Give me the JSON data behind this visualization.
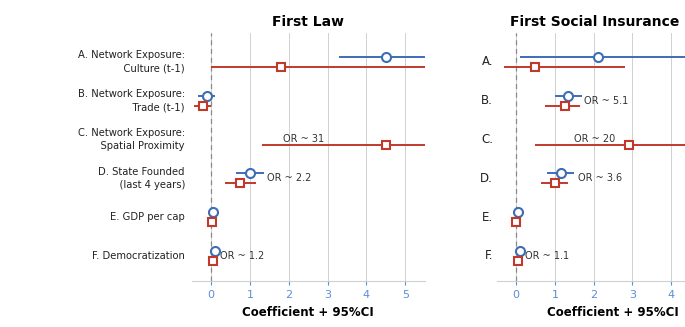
{
  "title_left": "First Law",
  "title_right": "First Social Insurance Law",
  "xlabel": "Coefficient + 95%CI",
  "xlim_left": [
    -0.5,
    5.5
  ],
  "xlim_right": [
    -0.5,
    5.5
  ],
  "xticks": [
    0,
    1,
    2,
    3,
    4,
    5
  ],
  "row_labels_left": [
    "A. Network Exposure:\n    Culture (t-1)",
    "B. Network Exposure:\n    Trade (t-1)",
    "C. Network Exposure:\n    Spatial Proximity",
    "D. State Founded\n    (last 4 years)",
    "E. GDP per cap",
    "F. Democratization"
  ],
  "row_labels_right": [
    "A.",
    "B.",
    "C.",
    "D.",
    "E.",
    "F."
  ],
  "blue_points_left": [
    4.5,
    -0.1,
    null,
    1.0,
    0.05,
    0.1
  ],
  "blue_lo_left": [
    3.3,
    -0.35,
    null,
    0.65,
    -0.08,
    0.02
  ],
  "blue_hi_left": [
    5.5,
    0.1,
    null,
    1.35,
    0.18,
    0.2
  ],
  "red_points_left": [
    1.8,
    -0.2,
    4.5,
    0.75,
    0.01,
    0.05
  ],
  "red_lo_left": [
    0.0,
    -0.45,
    1.3,
    0.35,
    -0.1,
    -0.08
  ],
  "red_hi_left": [
    5.5,
    0.0,
    5.5,
    1.15,
    0.13,
    0.17
  ],
  "blue_points_right": [
    2.1,
    1.35,
    null,
    1.15,
    0.05,
    0.1
  ],
  "blue_lo_right": [
    0.1,
    1.0,
    null,
    0.8,
    -0.03,
    0.02
  ],
  "blue_hi_right": [
    5.5,
    1.7,
    null,
    1.5,
    0.15,
    0.2
  ],
  "red_points_right": [
    0.5,
    1.25,
    2.9,
    1.0,
    0.01,
    0.05
  ],
  "red_lo_right": [
    -0.3,
    0.75,
    0.5,
    0.65,
    -0.1,
    -0.08
  ],
  "red_hi_right": [
    2.8,
    1.65,
    5.5,
    1.35,
    0.12,
    0.18
  ],
  "annotations_left": [
    null,
    null,
    "OR ~ 31",
    "OR ~ 2.2",
    null,
    "OR ~ 1.2"
  ],
  "annotations_right": [
    null,
    "OR ~ 5.1",
    "OR ~ 20",
    "OR ~ 3.6",
    null,
    "OR ~ 1.1"
  ],
  "ann_x_left": [
    null,
    null,
    1.85,
    1.45,
    null,
    0.22
  ],
  "ann_x_right": [
    null,
    1.75,
    1.5,
    1.6,
    null,
    0.22
  ],
  "blue_color": "#3d6eb5",
  "red_color": "#c0392b",
  "dashed_color": "#888888",
  "grid_color": "#d0d0d0",
  "tick_color": "#5b8dd9",
  "label_color": "#222222",
  "bg_color": "#ffffff"
}
